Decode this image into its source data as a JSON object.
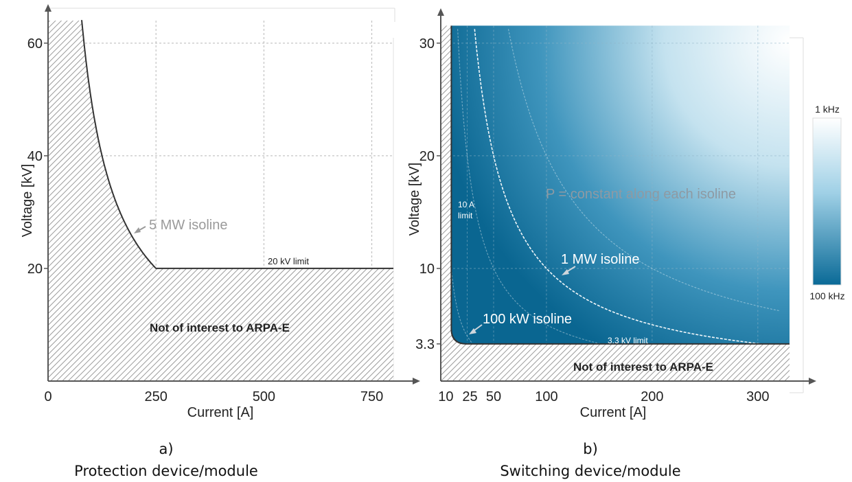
{
  "chart_data": [
    {
      "panel": "a)",
      "caption": "Protection device/module",
      "type": "area",
      "xlabel": "Current [A]",
      "ylabel": "Voltage [kV]",
      "xlim": [
        0,
        800
      ],
      "ylim": [
        0,
        64
      ],
      "xticks": [
        0,
        250,
        500,
        750
      ],
      "yticks": [
        20,
        40,
        60
      ],
      "grid": true,
      "boundary": {
        "name": "5 MW isoline",
        "power_MW": 5,
        "from_current": 78,
        "to_current": 250,
        "voltage_floor_kV": 20,
        "floor_to_current": 800
      },
      "annotations": [
        {
          "text": "5 MW isoline",
          "x": 190,
          "y": 28
        },
        {
          "text": "20 kV limit",
          "x": 500,
          "y": 20
        },
        {
          "text": "Not of interest to ARPA-E",
          "x": 450,
          "y": 10
        }
      ],
      "excluded_region": "Not of interest to ARPA-E"
    },
    {
      "panel": "b)",
      "caption": "Switching device/module",
      "type": "heatmap",
      "xlabel": "Current [A]",
      "ylabel": "Voltage [kV]",
      "xlim": [
        0,
        330
      ],
      "ylim": [
        0,
        32
      ],
      "xticks": [
        10,
        25,
        50,
        100,
        200,
        300
      ],
      "yticks": [
        3.3,
        10,
        20,
        30
      ],
      "grid": true,
      "colorbar": {
        "top_label": "1 kHz",
        "bottom_label": "100 kHz",
        "colors": [
          "#ffffff",
          "#0a6a97"
        ]
      },
      "isolines": [
        {
          "name": "100 kW isoline",
          "power_kW": 100
        },
        {
          "name": "1 MW isoline",
          "power_kW": 1000
        },
        {
          "name": "",
          "power_kW": 500
        },
        {
          "name": "",
          "power_kW": 2000
        }
      ],
      "limits": {
        "current_A": 10,
        "voltage_kV": 3.3
      },
      "annotations": [
        {
          "text": "P = constant along each isoline",
          "x": 200,
          "y": 17
        },
        {
          "text": "1 MW isoline",
          "x": 125,
          "y": 11
        },
        {
          "text": "100 kW isoline",
          "x": 80,
          "y": 5
        },
        {
          "text": "10 A\nlimit",
          "x": 10,
          "y": 15
        },
        {
          "text": "3.3 kV limit",
          "x": 165,
          "y": 3.3
        },
        {
          "text": "Not of interest to ARPA-E",
          "x": 170,
          "y": 1.5
        }
      ]
    }
  ]
}
